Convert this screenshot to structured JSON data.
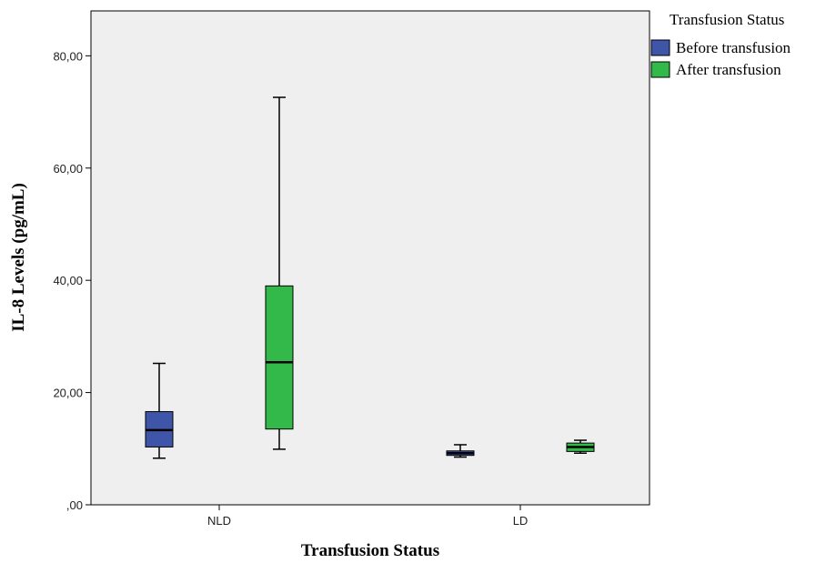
{
  "chart_data": {
    "type": "box",
    "xlabel": "Transfusion Status",
    "ylabel": "IL-8 Levels (pg/mL)",
    "ylim": [
      0,
      88
    ],
    "yticks": [
      0,
      20,
      40,
      60,
      80
    ],
    "ytick_labels": [
      ",00",
      "20,00",
      "40,00",
      "60,00",
      "80,00"
    ],
    "categories": [
      "NLD",
      "LD"
    ],
    "grid": false,
    "legend": {
      "title": "Transfusion Status",
      "placement": "right"
    },
    "series": [
      {
        "name": "Before transfusion",
        "color": "#3f55a8",
        "boxes": [
          {
            "min": 8.3,
            "q1": 10.3,
            "median": 13.3,
            "q3": 16.6,
            "max": 25.2
          },
          {
            "min": 8.5,
            "q1": 8.8,
            "median": 9.2,
            "q3": 9.6,
            "max": 10.7
          }
        ]
      },
      {
        "name": "After transfusion",
        "color": "#33b84a",
        "boxes": [
          {
            "min": 9.9,
            "q1": 13.5,
            "median": 25.4,
            "q3": 39.0,
            "max": 72.6
          },
          {
            "min": 9.2,
            "q1": 9.5,
            "median": 10.3,
            "q3": 11.0,
            "max": 11.5
          }
        ]
      }
    ]
  }
}
